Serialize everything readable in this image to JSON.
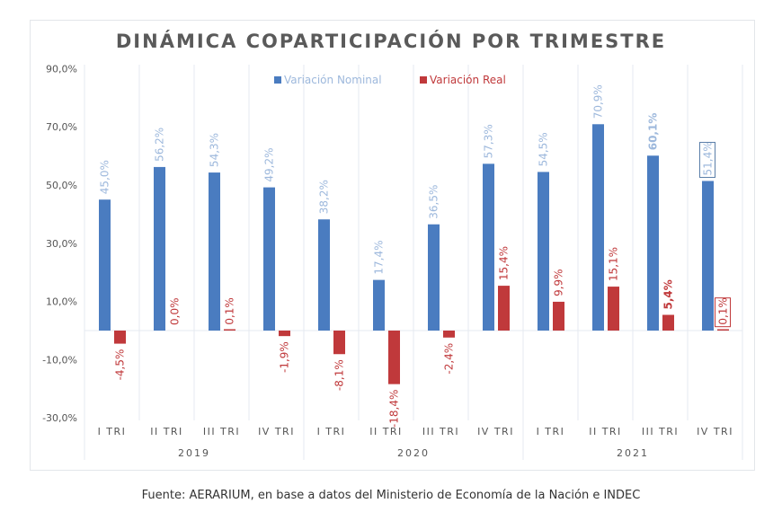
{
  "chart_data": {
    "type": "bar",
    "title": "DINÁMICA COPARTICIPACIÓN POR TRIMESTRE",
    "categories": [
      "I TRI",
      "II TRI",
      "III TRI",
      "IV TRI",
      "I TRI",
      "II TRI",
      "III TRI",
      "IV TRI",
      "I TRI",
      "II TRI",
      "III TRI",
      "IV TRI"
    ],
    "groups": [
      {
        "label": "2019",
        "count": 4
      },
      {
        "label": "2020",
        "count": 4
      },
      {
        "label": "2021",
        "count": 4
      }
    ],
    "series": [
      {
        "name": "Variación Nominal",
        "color": "#4a7cc0",
        "label_color": "#9db8dc",
        "values": [
          45.0,
          56.2,
          54.3,
          49.2,
          38.2,
          17.4,
          36.5,
          57.3,
          54.5,
          70.9,
          60.1,
          51.4
        ],
        "labels": [
          "45,0%",
          "56,2%",
          "54,3%",
          "49,2%",
          "38,2%",
          "17,4%",
          "36,5%",
          "57,3%",
          "54,5%",
          "70,9%",
          "60,1%",
          "51,4%"
        ]
      },
      {
        "name": "Variación Real",
        "color": "#c0393b",
        "label_color": "#c0393b",
        "values": [
          -4.5,
          0.0,
          0.1,
          -1.9,
          -8.1,
          -18.4,
          -2.4,
          15.4,
          9.9,
          15.1,
          5.4,
          0.1
        ],
        "labels": [
          "-4,5%",
          "0,0%",
          "0,1%",
          "-1,9%",
          "-8,1%",
          "-18,4%",
          "-2,4%",
          "15,4%",
          "9,9%",
          "15,1%",
          "5,4%",
          "0,1%"
        ]
      }
    ],
    "yticks": [
      90,
      70,
      50,
      30,
      10,
      -10,
      -30
    ],
    "ytick_labels": [
      "90,0%",
      "70,0%",
      "50,0%",
      "30,0%",
      "10,0%",
      "-10,0%",
      "-30,0%"
    ],
    "ylim": [
      -30,
      90
    ],
    "legend": "top-center",
    "xlabel": "",
    "ylabel": ""
  },
  "footer": "Fuente: AERARIUM, en base a datos del Ministerio de Economía de la Nación e INDEC"
}
